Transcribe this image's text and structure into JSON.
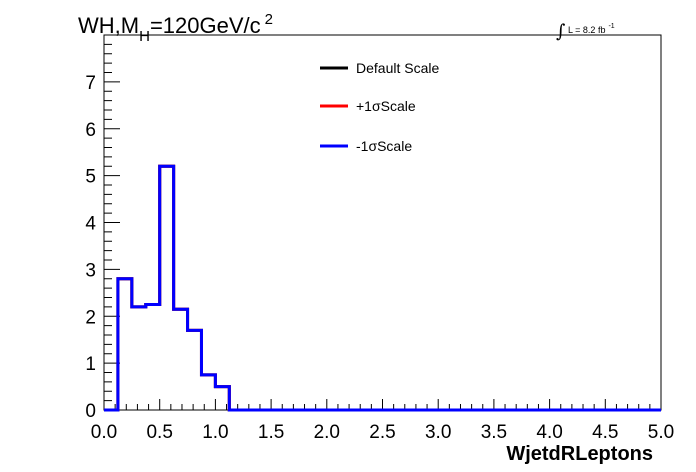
{
  "chart_data": {
    "type": "line",
    "title": {
      "main": "WH,M",
      "subscript": "H",
      "rest": "=120GeV/c",
      "superscript": "2"
    },
    "luminosity": {
      "integral": "∫",
      "label": "L = 8.2 fb",
      "superscript": "-1"
    },
    "xlabel": "WjetdRLeptons",
    "ylabel": "",
    "xlim": [
      0.0,
      5.0
    ],
    "ylim": [
      0,
      8
    ],
    "x_ticks": [
      "0.0",
      "0.5",
      "1.0",
      "1.5",
      "2.0",
      "2.5",
      "3.0",
      "3.5",
      "4.0",
      "4.5",
      "5.0"
    ],
    "y_ticks": [
      "0",
      "1",
      "2",
      "3",
      "4",
      "5",
      "6",
      "7"
    ],
    "bin_width": 0.125,
    "bin_edges_start": 0.0,
    "grid": false,
    "legend_position": "top-center",
    "series": [
      {
        "name": "Default Scale",
        "color": "#000000",
        "values": [
          0,
          2.8,
          2.2,
          2.25,
          5.2,
          2.15,
          1.7,
          0.75,
          0.5,
          0,
          0,
          0,
          0,
          0,
          0,
          0,
          0,
          0,
          0,
          0,
          0,
          0,
          0,
          0,
          0,
          0,
          0,
          0,
          0,
          0,
          0,
          0,
          0,
          0,
          0,
          0,
          0,
          0,
          0,
          0
        ]
      },
      {
        "name": "+1σScale",
        "color": "#ff0000",
        "values": [
          0,
          2.8,
          2.2,
          2.25,
          5.2,
          2.15,
          1.7,
          0.75,
          0.5,
          0,
          0,
          0,
          0,
          0,
          0,
          0,
          0,
          0,
          0,
          0,
          0,
          0,
          0,
          0,
          0,
          0,
          0,
          0,
          0,
          0,
          0,
          0,
          0,
          0,
          0,
          0,
          0,
          0,
          0,
          0
        ]
      },
      {
        "name": "-1σScale",
        "color": "#0000ff",
        "values": [
          0,
          2.8,
          2.2,
          2.25,
          5.2,
          2.15,
          1.7,
          0.75,
          0.5,
          0,
          0,
          0,
          0,
          0,
          0,
          0,
          0,
          0,
          0,
          0,
          0,
          0,
          0,
          0,
          0,
          0,
          0,
          0,
          0,
          0,
          0,
          0,
          0,
          0,
          0,
          0,
          0,
          0,
          0,
          0
        ]
      }
    ]
  }
}
